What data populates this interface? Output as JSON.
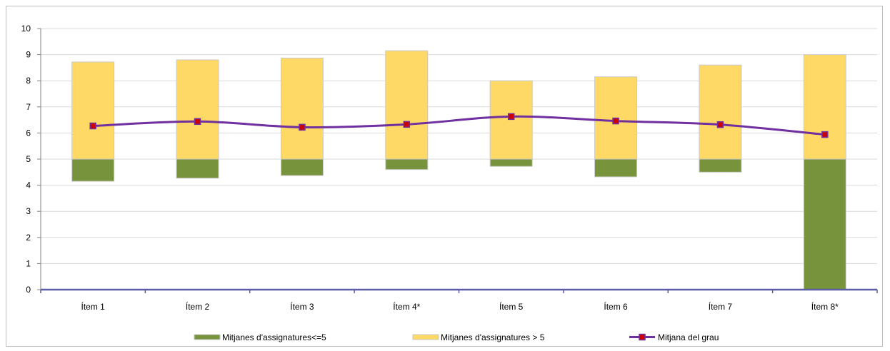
{
  "colors": {
    "low_series": "#77933c",
    "high_series": "#ffd966",
    "bar_border": "#c9c9c9",
    "line_series": "#7030a0",
    "marker_fill": "#cc0000",
    "gridline": "#d9d9d9",
    "axis": "#5b5ea6"
  },
  "chart_data": {
    "type": "bar",
    "stacked": true,
    "categories": [
      "Ítem 1",
      "Ítem 2",
      "Ítem 3",
      "Ítem 4*",
      "Ítem 5",
      "Ítem 6",
      "Ítem 7",
      "Ítem 8*"
    ],
    "ylim": [
      0,
      10
    ],
    "yticks": [
      0,
      1,
      2,
      3,
      4,
      5,
      6,
      7,
      8,
      9,
      10
    ],
    "grid": true,
    "legend_position": "bottom",
    "series": [
      {
        "name": "Mitjanes d'assignatures<=5",
        "kind": "bar-range",
        "low": [
          4.15,
          4.27,
          4.37,
          4.6,
          4.72,
          4.32,
          4.5,
          0
        ],
        "high": [
          5,
          5,
          5,
          5,
          5,
          5,
          5,
          5
        ]
      },
      {
        "name": "Mitjanes d'assignatures > 5",
        "kind": "bar-range",
        "low": [
          5,
          5,
          5,
          5,
          5,
          5,
          5,
          5
        ],
        "high": [
          8.72,
          8.8,
          8.87,
          9.15,
          8.0,
          8.15,
          8.6,
          9.0
        ]
      },
      {
        "name": "Mitjana del grau",
        "kind": "line",
        "values": [
          6.27,
          6.44,
          6.22,
          6.33,
          6.63,
          6.46,
          6.32,
          5.94
        ]
      }
    ]
  }
}
